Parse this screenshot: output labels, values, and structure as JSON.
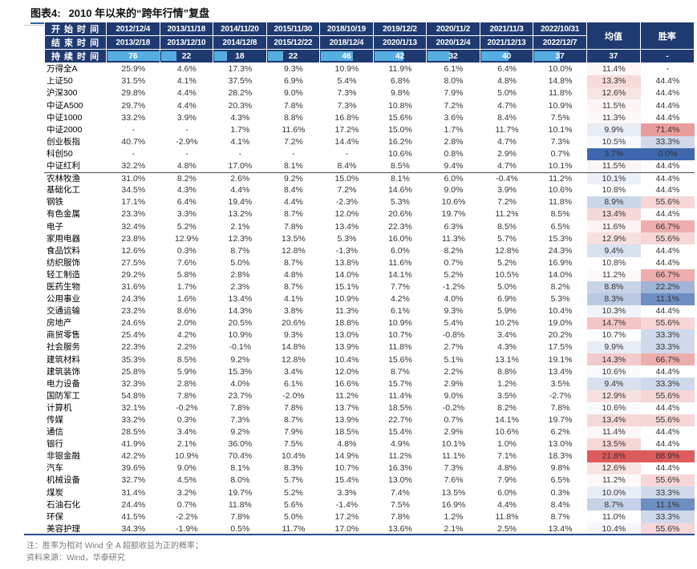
{
  "title": {
    "tag": "图表4:",
    "text": "2010 年以来的“跨年行情”复盘"
  },
  "header": {
    "start_label": "开 始 时 间",
    "end_label": "结 束 时 间",
    "duration_label": "持 续 时 间",
    "mean_label": "均值",
    "win_label": "胜率",
    "start_dates": [
      "2012/12/4",
      "2013/11/18",
      "2014/11/20",
      "2015/11/30",
      "2018/10/19",
      "2019/12/2",
      "2020/11/2",
      "2021/11/3",
      "2022/10/31"
    ],
    "end_dates": [
      "2013/2/18",
      "2013/12/10",
      "2014/12/8",
      "2015/12/22",
      "2018/12/4",
      "2020/1/13",
      "2020/12/4",
      "2021/12/13",
      "2022/12/7"
    ],
    "durations": [
      76,
      22,
      18,
      22,
      46,
      42,
      32,
      40,
      37
    ],
    "duration_bar_max": 76,
    "duration_mean": "37",
    "duration_win": "-"
  },
  "chart_data": {
    "type": "table",
    "title": "2010 年以来的“跨年行情”复盘",
    "columns": [
      "开始时间",
      "2012/12/4",
      "2013/11/18",
      "2014/11/20",
      "2015/11/30",
      "2018/10/19",
      "2019/12/2",
      "2020/11/2",
      "2021/11/3",
      "2022/10/31",
      "均值",
      "胜率"
    ]
  },
  "index_rows": [
    {
      "label": "万得全A",
      "values": [
        "25.9%",
        "4.6%",
        "17.3%",
        "9.3%",
        "10.9%",
        "11.9%",
        "6.1%",
        "6.4%",
        "10.0%"
      ],
      "mean": "11.4%",
      "win": "-"
    },
    {
      "label": "上证50",
      "values": [
        "31.5%",
        "4.1%",
        "37.5%",
        "6.9%",
        "5.4%",
        "6.8%",
        "8.0%",
        "4.8%",
        "14.8%"
      ],
      "mean": "13.3%",
      "win": "44.4%"
    },
    {
      "label": "沪深300",
      "values": [
        "29.8%",
        "4.4%",
        "28.2%",
        "9.0%",
        "7.3%",
        "9.8%",
        "7.9%",
        "5.0%",
        "11.8%"
      ],
      "mean": "12.6%",
      "win": "44.4%"
    },
    {
      "label": "中证A500",
      "values": [
        "29.7%",
        "4.4%",
        "20.3%",
        "7.8%",
        "7.3%",
        "10.8%",
        "7.2%",
        "4.7%",
        "10.9%"
      ],
      "mean": "11.5%",
      "win": "44.4%"
    },
    {
      "label": "中证1000",
      "values": [
        "33.2%",
        "3.9%",
        "4.3%",
        "8.8%",
        "16.8%",
        "15.6%",
        "3.6%",
        "8.4%",
        "7.5%"
      ],
      "mean": "11.3%",
      "win": "44.4%"
    },
    {
      "label": "中证2000",
      "values": [
        "-",
        "-",
        "1.7%",
        "11.6%",
        "17.2%",
        "15.0%",
        "1.7%",
        "11.7%",
        "10.1%"
      ],
      "mean": "9.9%",
      "win": "71.4%"
    },
    {
      "label": "创业板指",
      "values": [
        "40.7%",
        "-2.9%",
        "4.1%",
        "7.2%",
        "14.4%",
        "16.2%",
        "2.8%",
        "4.7%",
        "7.3%"
      ],
      "mean": "10.5%",
      "win": "33.3%"
    },
    {
      "label": "科创50",
      "values": [
        "-",
        "-",
        "-",
        "-",
        "-",
        "10.6%",
        "0.8%",
        "2.9%",
        "0.7%"
      ],
      "mean": "3.7%",
      "win": "0.0%"
    },
    {
      "label": "中证红利",
      "values": [
        "32.2%",
        "4.8%",
        "17.0%",
        "8.1%",
        "8.4%",
        "8.5%",
        "9.4%",
        "4.7%",
        "10.1%"
      ],
      "mean": "11.5%",
      "win": "44.4%"
    }
  ],
  "sector_rows": [
    {
      "label": "农林牧渔",
      "values": [
        "31.0%",
        "8.2%",
        "2.6%",
        "9.2%",
        "15.0%",
        "8.1%",
        "6.0%",
        "-0.4%",
        "11.2%"
      ],
      "mean": "10.1%",
      "win": "44.4%"
    },
    {
      "label": "基础化工",
      "values": [
        "34.5%",
        "4.3%",
        "4.4%",
        "8.4%",
        "7.2%",
        "14.6%",
        "9.0%",
        "3.9%",
        "10.6%"
      ],
      "mean": "10.8%",
      "win": "44.4%"
    },
    {
      "label": "钢铁",
      "values": [
        "17.1%",
        "6.4%",
        "19.4%",
        "4.4%",
        "-2.3%",
        "5.3%",
        "10.6%",
        "7.2%",
        "11.8%"
      ],
      "mean": "8.9%",
      "win": "55.6%"
    },
    {
      "label": "有色金属",
      "values": [
        "23.3%",
        "3.3%",
        "13.2%",
        "8.7%",
        "12.0%",
        "20.6%",
        "19.7%",
        "11.2%",
        "8.5%"
      ],
      "mean": "13.4%",
      "win": "44.4%"
    },
    {
      "label": "电子",
      "values": [
        "32.4%",
        "5.2%",
        "2.1%",
        "7.8%",
        "13.4%",
        "22.3%",
        "6.3%",
        "8.5%",
        "6.5%"
      ],
      "mean": "11.6%",
      "win": "66.7%"
    },
    {
      "label": "家用电器",
      "values": [
        "23.8%",
        "12.9%",
        "12.3%",
        "13.5%",
        "5.3%",
        "16.0%",
        "11.3%",
        "5.7%",
        "15.3%"
      ],
      "mean": "12.9%",
      "win": "55.6%"
    },
    {
      "label": "食品饮料",
      "values": [
        "12.6%",
        "0.3%",
        "8.7%",
        "12.8%",
        "-1.3%",
        "6.0%",
        "8.2%",
        "12.8%",
        "24.3%"
      ],
      "mean": "9.4%",
      "win": "44.4%"
    },
    {
      "label": "纺织服饰",
      "values": [
        "27.5%",
        "7.6%",
        "5.0%",
        "8.7%",
        "13.8%",
        "11.6%",
        "0.7%",
        "5.2%",
        "16.9%"
      ],
      "mean": "10.8%",
      "win": "44.4%"
    },
    {
      "label": "轻工制造",
      "values": [
        "29.2%",
        "5.8%",
        "2.8%",
        "4.8%",
        "14.0%",
        "14.1%",
        "5.2%",
        "10.5%",
        "14.0%"
      ],
      "mean": "11.2%",
      "win": "66.7%"
    },
    {
      "label": "医药生物",
      "values": [
        "31.6%",
        "1.7%",
        "2.3%",
        "8.7%",
        "15.1%",
        "7.7%",
        "-1.2%",
        "5.0%",
        "8.2%"
      ],
      "mean": "8.8%",
      "win": "22.2%"
    },
    {
      "label": "公用事业",
      "values": [
        "24.3%",
        "1.6%",
        "13.4%",
        "4.1%",
        "10.9%",
        "4.2%",
        "4.0%",
        "6.9%",
        "5.3%"
      ],
      "mean": "8.3%",
      "win": "11.1%"
    },
    {
      "label": "交通运输",
      "values": [
        "23.2%",
        "8.6%",
        "14.3%",
        "3.8%",
        "11.3%",
        "6.1%",
        "9.3%",
        "5.9%",
        "10.4%"
      ],
      "mean": "10.3%",
      "win": "44.4%"
    },
    {
      "label": "房地产",
      "values": [
        "24.6%",
        "2.0%",
        "20.5%",
        "20.6%",
        "18.8%",
        "10.9%",
        "5.4%",
        "10.2%",
        "19.0%"
      ],
      "mean": "14.7%",
      "win": "55.6%"
    },
    {
      "label": "商贸零售",
      "values": [
        "25.4%",
        "4.2%",
        "10.9%",
        "9.3%",
        "13.0%",
        "10.7%",
        "-0.8%",
        "3.4%",
        "20.2%"
      ],
      "mean": "10.7%",
      "win": "33.3%"
    },
    {
      "label": "社会服务",
      "values": [
        "22.3%",
        "2.2%",
        "-0.1%",
        "14.8%",
        "13.9%",
        "11.8%",
        "2.7%",
        "4.3%",
        "17.5%"
      ],
      "mean": "9.9%",
      "win": "33.3%"
    },
    {
      "label": "建筑材料",
      "values": [
        "35.3%",
        "8.5%",
        "9.2%",
        "12.8%",
        "10.4%",
        "15.6%",
        "5.1%",
        "13.1%",
        "19.1%"
      ],
      "mean": "14.3%",
      "win": "66.7%"
    },
    {
      "label": "建筑装饰",
      "values": [
        "25.8%",
        "5.9%",
        "15.3%",
        "3.4%",
        "12.0%",
        "8.7%",
        "2.2%",
        "8.8%",
        "13.4%"
      ],
      "mean": "10.6%",
      "win": "44.4%"
    },
    {
      "label": "电力设备",
      "values": [
        "32.3%",
        "2.8%",
        "4.0%",
        "6.1%",
        "16.6%",
        "15.7%",
        "2.9%",
        "1.2%",
        "3.5%"
      ],
      "mean": "9.4%",
      "win": "33.3%"
    },
    {
      "label": "国防军工",
      "values": [
        "54.8%",
        "7.8%",
        "23.7%",
        "-2.0%",
        "11.2%",
        "11.4%",
        "9.0%",
        "3.5%",
        "-2.7%"
      ],
      "mean": "12.9%",
      "win": "55.6%"
    },
    {
      "label": "计算机",
      "values": [
        "32.1%",
        "-0.2%",
        "7.8%",
        "7.8%",
        "13.7%",
        "18.5%",
        "-0.2%",
        "8.2%",
        "7.8%"
      ],
      "mean": "10.6%",
      "win": "44.4%"
    },
    {
      "label": "传媒",
      "values": [
        "33.2%",
        "0.3%",
        "7.3%",
        "8.7%",
        "13.9%",
        "22.7%",
        "0.7%",
        "14.1%",
        "19.7%"
      ],
      "mean": "13.4%",
      "win": "55.6%"
    },
    {
      "label": "通信",
      "values": [
        "28.5%",
        "3.4%",
        "9.2%",
        "7.9%",
        "18.5%",
        "15.4%",
        "2.9%",
        "10.6%",
        "6.2%"
      ],
      "mean": "11.4%",
      "win": "44.4%"
    },
    {
      "label": "银行",
      "values": [
        "41.9%",
        "2.1%",
        "36.0%",
        "7.5%",
        "4.8%",
        "4.9%",
        "10.1%",
        "1.0%",
        "13.0%"
      ],
      "mean": "13.5%",
      "win": "44.4%"
    },
    {
      "label": "非银金融",
      "values": [
        "42.2%",
        "10.9%",
        "70.4%",
        "10.4%",
        "14.9%",
        "11.2%",
        "11.1%",
        "7.1%",
        "18.3%"
      ],
      "mean": "21.8%",
      "win": "88.9%"
    },
    {
      "label": "汽车",
      "values": [
        "39.6%",
        "9.0%",
        "8.1%",
        "8.3%",
        "10.7%",
        "16.3%",
        "7.3%",
        "4.8%",
        "9.8%"
      ],
      "mean": "12.6%",
      "win": "44.4%"
    },
    {
      "label": "机械设备",
      "values": [
        "32.7%",
        "4.5%",
        "8.0%",
        "5.7%",
        "15.4%",
        "13.0%",
        "7.6%",
        "7.9%",
        "6.5%"
      ],
      "mean": "11.2%",
      "win": "55.6%"
    },
    {
      "label": "煤炭",
      "values": [
        "31.4%",
        "3.2%",
        "19.7%",
        "5.2%",
        "3.3%",
        "7.4%",
        "13.5%",
        "6.0%",
        "0.3%"
      ],
      "mean": "10.0%",
      "win": "33.3%"
    },
    {
      "label": "石油石化",
      "values": [
        "24.4%",
        "0.7%",
        "11.8%",
        "5.6%",
        "-1.4%",
        "7.5%",
        "16.9%",
        "4.4%",
        "8.4%"
      ],
      "mean": "8.7%",
      "win": "11.1%"
    },
    {
      "label": "环保",
      "values": [
        "41.5%",
        "-2.2%",
        "7.8%",
        "5.0%",
        "17.2%",
        "7.8%",
        "1.2%",
        "11.8%",
        "8.7%"
      ],
      "mean": "11.0%",
      "win": "33.3%"
    },
    {
      "label": "美容护理",
      "values": [
        "34.3%",
        "-1.9%",
        "0.5%",
        "11.7%",
        "17.0%",
        "13.6%",
        "2.1%",
        "2.5%",
        "13.4%"
      ],
      "mean": "10.4%",
      "win": "55.6%"
    }
  ],
  "colors": {
    "header_navy": "#1e3a70",
    "bar_blue": "#55aee2",
    "scale_red": "#dd5b5b",
    "scale_blue": "#3e68ae",
    "mean_scale": {
      "min": 3.7,
      "mid": 10.8,
      "max": 21.8
    },
    "win_scale": {
      "min": 0,
      "mid": 44.4,
      "max": 88.9
    },
    "title_underline": "#33639f",
    "section_divider": "#4a4a4a"
  },
  "notes": [
    "注：胜率为相对 Wind 全 A 超额收益为正的概率；",
    "资料来源：Wind，华泰研究"
  ]
}
